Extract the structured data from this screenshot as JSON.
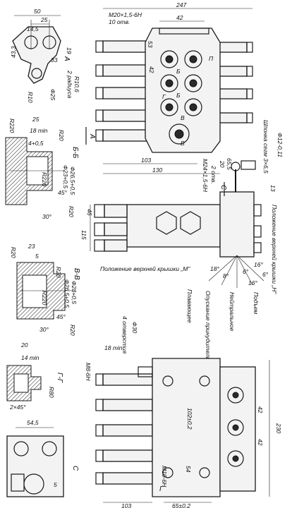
{
  "labels": {
    "d_50": "50",
    "d_25": "25",
    "d_14_5": "14,5",
    "d_43_3": "43,3",
    "d_33": "33",
    "d_19": "19",
    "d_R10_6": "R10,6",
    "d_2_radiusa": "2 радиуса",
    "d_phi25": "Ф25",
    "d_R10": "R10",
    "view_A_label": "А",
    "d_247": "247",
    "d_thread_top": "М20×1,5-6Н",
    "d_10_otv": "10 отв.",
    "d_42_top": "42",
    "d_53": "53",
    "d_42_mid": "42",
    "d_103": "103",
    "d_130": "130",
    "port_P": "П",
    "port_B1": "Б",
    "port_B2": "Б",
    "port_V": "В",
    "port_G": "Г",
    "port_V2": "В",
    "d_thread_side": "М24×1,5-6Н",
    "d_2_otv": "2 отв.",
    "d_65_5": "65,5",
    "d_20": "20",
    "shponka": "Шпонка сегм 3×6,5",
    "d_phi12": "Ф12-0,11",
    "d_13": "13",
    "section_C_arrow": "С",
    "position_H": "Положение верхней крышки „Н\"",
    "position_M": "Положение верхней крышки „М\"",
    "d_46": "46",
    "d_115": "115",
    "angle_16a": "16°",
    "angle_6a": "6°",
    "angle_18": "18°",
    "angle_8": "8°",
    "angle_16b": "16°",
    "angle_6b": "6°",
    "pos_lower": "Опускание принудительное",
    "pos_neutral": "Нейтральное",
    "pos_float": "Плавающее",
    "pos_raise": "Подъем",
    "d_R220": "R220",
    "d_18min": "18 min",
    "d_25_b": "25",
    "d_R20a": "R20",
    "d_4": "4+0,5",
    "d_phi23": "Ф23+0,5",
    "d_phi26_5": "Ф26,5+0,5",
    "d_R220b": "R220",
    "d_45": "45°",
    "d_30": "30°",
    "d_R20b": "R20",
    "section_BB": "Б-Б",
    "d_23": "23",
    "d_5": "5",
    "d_R20c": "R20",
    "d_R20d": "R20",
    "d_phi26_5b": "Ф26,5+0,5",
    "d_phi28": "Ф28+0,5",
    "d_R220c": "R220",
    "d_45b": "45°",
    "d_30b": "30°",
    "d_R20e": "R20",
    "section_VV": "В-В",
    "d_20_g": "20",
    "d_14min": "14 min",
    "d_R80": "R80",
    "d_2x45": "2×45°",
    "section_GG": "Г-Г",
    "d_18min_b": "18 min",
    "d_M8": "М8-6Н",
    "d_phi30": "Ф30",
    "d_4_otv": "4 отверстия",
    "d_102": "102±0,2",
    "d_54": "54",
    "d_M10": "М10-6Н",
    "d_65_0_2": "65±0,2",
    "d_103b": "103",
    "d_230": "230",
    "d_42b": "42",
    "d_42c": "42",
    "d_54_5": "54,5",
    "d_5b": "5",
    "view_C": "С"
  }
}
